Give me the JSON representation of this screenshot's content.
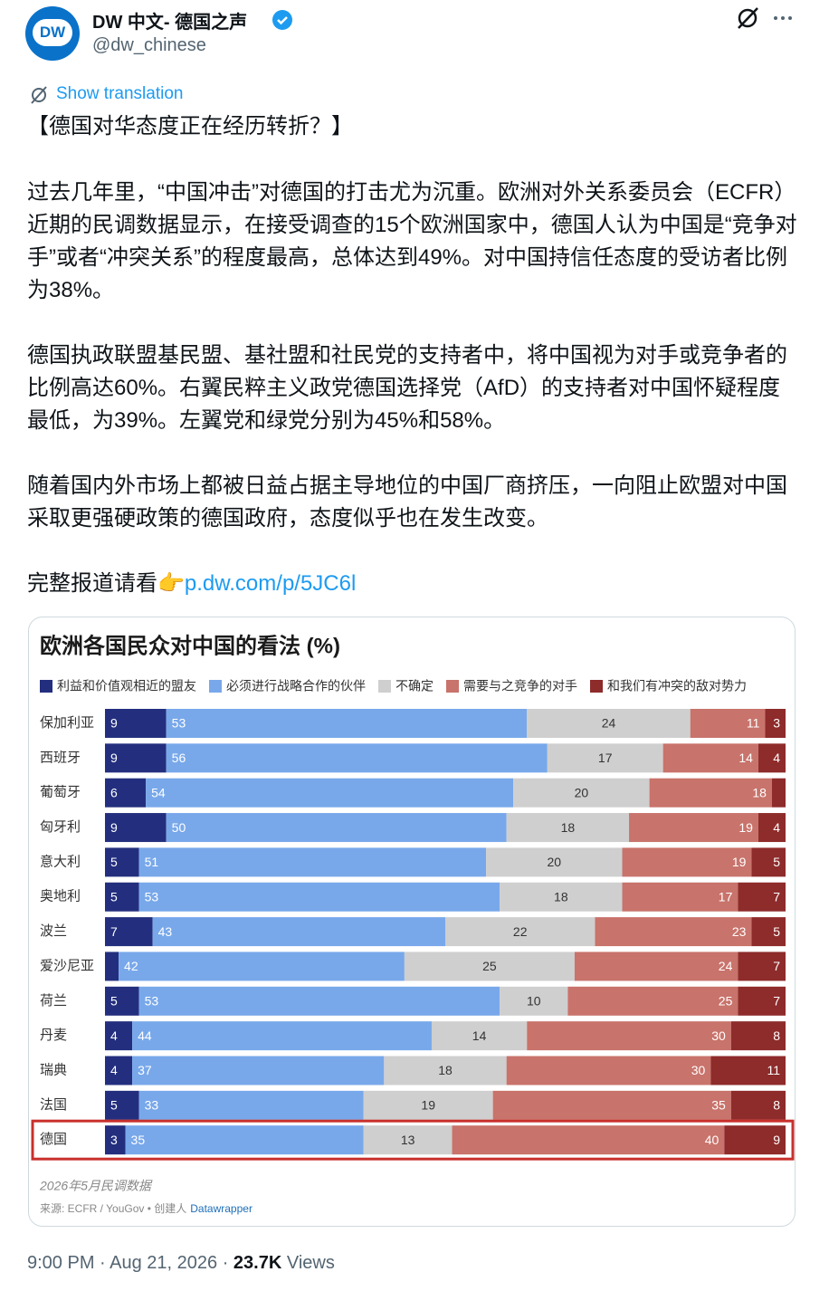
{
  "tweet": {
    "author_name": "DW 中文- 德国之声",
    "handle": "@dw_chinese",
    "avatar_text": "DW",
    "show_translation": "Show translation",
    "paragraphs": [
      "【德国对华态度正在经历转折？】",
      "过去几年里，“中国冲击”对德国的打击尤为沉重。欧洲对外关系委员会（ECFR）近期的民调数据显示，在接受调查的15个欧洲国家中，德国人认为中国是“竞争对手”或者“冲突关系”的程度最高，总体达到49%。对中国持信任态度的受访者比例为38%。",
      "德国执政联盟基民盟、基社盟和社民党的支持者中，将中国视为对手或竞争者的比例高达60%。右翼民粹主义政党德国选择党（AfD）的支持者对中国怀疑程度最低，为39%。左翼党和绿党分别为45%和58%。",
      "随着国内外市场上都被日益占据主导地位的中国厂商挤压，一向阻止欧盟对中国采取更强硬政策的德国政府，态度似乎也在发生改变。"
    ],
    "link_prefix": "完整报道请看👉",
    "link": "p.dw.com/p/5JC6l",
    "time": "9:00 PM · Aug 21, 2026 · ",
    "views_count": "23.7K",
    "views_label": " Views"
  },
  "chart_data": {
    "type": "stacked_bar",
    "orientation": "horizontal",
    "title": "欧洲各国民众对中国的看法 (%)",
    "categories": [
      "保加利亚",
      "西班牙",
      "葡萄牙",
      "匈牙利",
      "意大利",
      "奥地利",
      "波兰",
      "爱沙尼亚",
      "荷兰",
      "丹麦",
      "瑞典",
      "法国",
      "德国"
    ],
    "series": [
      {
        "name": "利益和价值观相近的盟友",
        "color": "#232f7e",
        "values": [
          9,
          9,
          6,
          9,
          5,
          5,
          7,
          2,
          5,
          4,
          4,
          5,
          3
        ]
      },
      {
        "name": "必须进行战略合作的伙伴",
        "color": "#78a8ea",
        "values": [
          53,
          56,
          54,
          50,
          51,
          53,
          43,
          42,
          53,
          44,
          37,
          33,
          35
        ]
      },
      {
        "name": "不确定",
        "color": "#cfcfcf",
        "values": [
          24,
          17,
          20,
          18,
          20,
          18,
          22,
          25,
          10,
          14,
          18,
          19,
          13
        ]
      },
      {
        "name": "需要与之竞争的对手",
        "color": "#c8736b",
        "values": [
          11,
          14,
          18,
          19,
          19,
          17,
          23,
          24,
          25,
          30,
          30,
          35,
          40
        ]
      },
      {
        "name": "和我们有冲突的敌对势力",
        "color": "#8e2b2b",
        "values": [
          3,
          4,
          2,
          4,
          5,
          7,
          5,
          7,
          7,
          8,
          11,
          8,
          9
        ]
      }
    ],
    "xlim": [
      0,
      100
    ],
    "highlight": {
      "category_index": 12,
      "color": "#c9302c"
    },
    "note": "2026年5月民调数据",
    "source": "来源: ECFR / YouGov • 创建人",
    "source_link": "Datawrapper"
  }
}
